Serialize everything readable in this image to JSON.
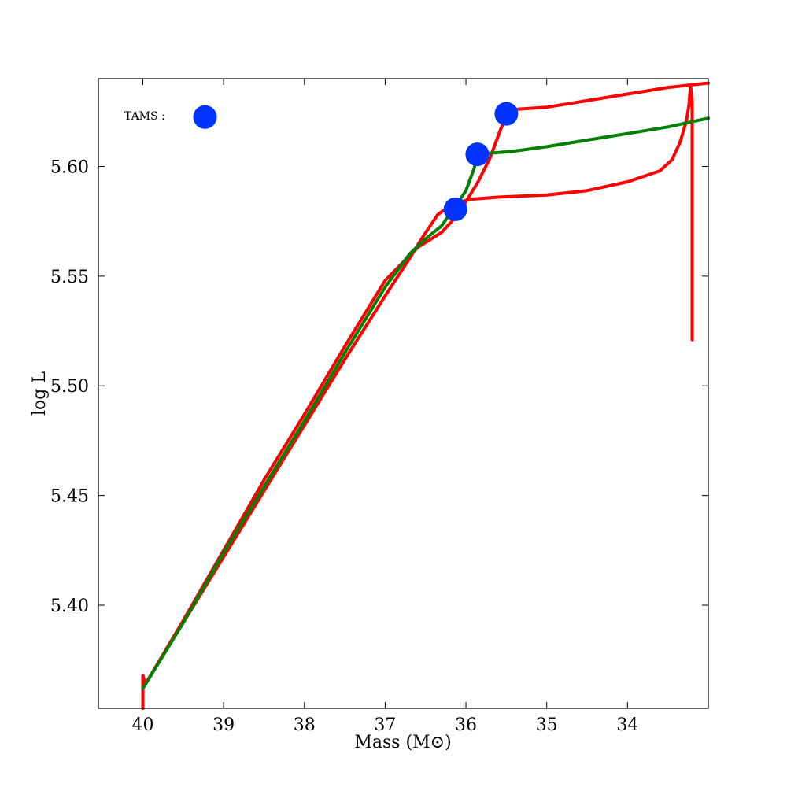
{
  "chart_data": {
    "type": "line",
    "title": "",
    "xlabel": "Mass (M⊙)",
    "ylabel": "log L",
    "xlim": [
      40.55,
      33.0
    ],
    "ylim": [
      5.353,
      5.64
    ],
    "x_inverted": true,
    "grid": false,
    "x_ticks": [
      {
        "value": 40,
        "label": "40"
      },
      {
        "value": 39,
        "label": "39"
      },
      {
        "value": 38,
        "label": "38"
      },
      {
        "value": 37,
        "label": "37"
      },
      {
        "value": 36,
        "label": "36"
      },
      {
        "value": 35,
        "label": "35"
      },
      {
        "value": 34,
        "label": "34"
      }
    ],
    "y_ticks": [
      {
        "value": 5.4,
        "label": "5.40"
      },
      {
        "value": 5.45,
        "label": "5.45"
      },
      {
        "value": 5.5,
        "label": "5.50"
      },
      {
        "value": 5.55,
        "label": "5.55"
      },
      {
        "value": 5.6,
        "label": "5.60"
      }
    ],
    "series": [
      {
        "color": "#ff0000",
        "points": [
          [
            40.0,
            5.353
          ],
          [
            40.0,
            5.368
          ],
          [
            39.97,
            5.364
          ],
          [
            39.5,
            5.392
          ],
          [
            39.0,
            5.422
          ],
          [
            38.5,
            5.452
          ],
          [
            38.0,
            5.482
          ],
          [
            37.5,
            5.512
          ],
          [
            37.0,
            5.541
          ],
          [
            36.7,
            5.558
          ],
          [
            36.55,
            5.567
          ],
          [
            36.35,
            5.578
          ],
          [
            36.2,
            5.582
          ],
          [
            36.05,
            5.584
          ],
          [
            35.95,
            5.585
          ],
          [
            35.6,
            5.586
          ],
          [
            35.0,
            5.587
          ],
          [
            34.5,
            5.589
          ],
          [
            34.0,
            5.593
          ],
          [
            33.6,
            5.598
          ],
          [
            33.45,
            5.603
          ],
          [
            33.35,
            5.611
          ],
          [
            33.27,
            5.621
          ],
          [
            33.24,
            5.628
          ],
          [
            33.22,
            5.637
          ],
          [
            33.2,
            5.629
          ],
          [
            33.2,
            5.6
          ],
          [
            33.2,
            5.57
          ],
          [
            33.2,
            5.54
          ],
          [
            33.2,
            5.521
          ]
        ]
      },
      {
        "color": "#ff0000",
        "points": [
          [
            40.0,
            5.362
          ],
          [
            39.5,
            5.393
          ],
          [
            39.0,
            5.425
          ],
          [
            38.5,
            5.457
          ],
          [
            38.0,
            5.487
          ],
          [
            37.5,
            5.518
          ],
          [
            37.0,
            5.548
          ],
          [
            36.6,
            5.563
          ],
          [
            36.3,
            5.57
          ],
          [
            36.1,
            5.578
          ],
          [
            36.0,
            5.584
          ],
          [
            35.85,
            5.593
          ],
          [
            35.7,
            5.604
          ],
          [
            35.57,
            5.617
          ],
          [
            35.5,
            5.623
          ],
          [
            35.4,
            5.626
          ],
          [
            35.0,
            5.627
          ],
          [
            34.5,
            5.63
          ],
          [
            34.0,
            5.633
          ],
          [
            33.5,
            5.636
          ],
          [
            33.0,
            5.638
          ]
        ]
      },
      {
        "color": "#008000",
        "points": [
          [
            40.0,
            5.362
          ],
          [
            39.5,
            5.392
          ],
          [
            39.0,
            5.424
          ],
          [
            38.5,
            5.454
          ],
          [
            38.0,
            5.484
          ],
          [
            37.5,
            5.515
          ],
          [
            37.0,
            5.545
          ],
          [
            36.7,
            5.56
          ],
          [
            36.5,
            5.567
          ],
          [
            36.3,
            5.573
          ],
          [
            36.15,
            5.581
          ],
          [
            36.0,
            5.589
          ],
          [
            35.9,
            5.599
          ],
          [
            35.85,
            5.606
          ],
          [
            35.7,
            5.606
          ],
          [
            35.4,
            5.607
          ],
          [
            35.0,
            5.609
          ],
          [
            34.5,
            5.612
          ],
          [
            34.0,
            5.615
          ],
          [
            33.5,
            5.618
          ],
          [
            33.0,
            5.622
          ]
        ]
      }
    ],
    "markers": {
      "color": "#0033ff",
      "points": [
        [
          39.23,
          5.6225
        ],
        [
          36.13,
          5.5805
        ],
        [
          35.86,
          5.6055
        ],
        [
          35.5,
          5.624
        ]
      ]
    },
    "legend": {
      "label": "TAMS :",
      "placement": "top-left"
    }
  }
}
